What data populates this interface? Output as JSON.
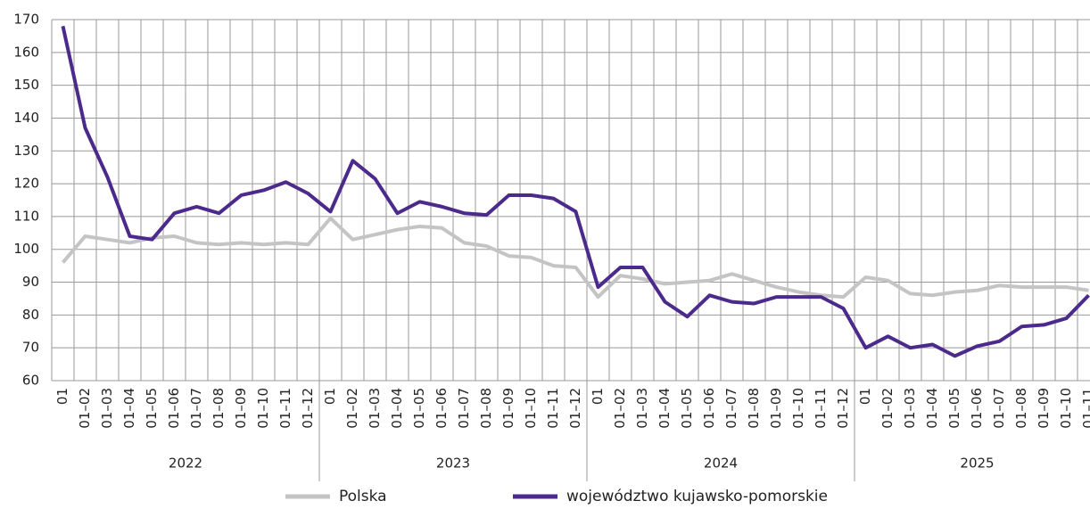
{
  "chart_data": {
    "type": "line",
    "groups": [
      {
        "name": "2022",
        "categories": [
          "01",
          "01–02",
          "01–03",
          "01–04",
          "01–05",
          "01–06",
          "01–07",
          "01–08",
          "01–09",
          "01–10",
          "01–11",
          "01–12"
        ]
      },
      {
        "name": "2023",
        "categories": [
          "01",
          "01–02",
          "01–03",
          "01–04",
          "01–05",
          "01–06",
          "01–07",
          "01–08",
          "01–09",
          "01–10",
          "01–11",
          "01–12"
        ]
      },
      {
        "name": "2024",
        "categories": [
          "01",
          "01–02",
          "01–03",
          "01–04",
          "01–05",
          "01–06",
          "01–07",
          "01–08",
          "01–09",
          "01–10",
          "01–11",
          "01–12"
        ]
      },
      {
        "name": "2025",
        "categories": [
          "01",
          "01–02",
          "01–03",
          "01–04",
          "01–05",
          "01–06",
          "01–07",
          "01–08",
          "01–09",
          "01–10",
          "01–11"
        ]
      }
    ],
    "series": [
      {
        "name": "Polska",
        "color": "#c4c4c4",
        "values": [
          96,
          104,
          103,
          102,
          103.5,
          104,
          102,
          101.5,
          102,
          101.5,
          102,
          101.5,
          109.5,
          103,
          104.5,
          106,
          107,
          106.5,
          102,
          101,
          98,
          97.5,
          95,
          94.5,
          85.5,
          92,
          91,
          89.5,
          90,
          90.5,
          92.5,
          90.5,
          88.5,
          87,
          86,
          85.5,
          91.5,
          90.5,
          86.5,
          86,
          87,
          87.5,
          89,
          88.5,
          88.5,
          88.5,
          87.5
        ]
      },
      {
        "name": "województwo kujawsko-pomorskie",
        "color": "#4b2a8c",
        "values": [
          168,
          137,
          122,
          104,
          103,
          111,
          113,
          111,
          116.5,
          118,
          120.5,
          117,
          111.5,
          127,
          121.5,
          111,
          114.5,
          113,
          111,
          110.5,
          116.5,
          116.5,
          115.5,
          111.5,
          88.5,
          94.5,
          94.5,
          84,
          79.5,
          86,
          84,
          83.5,
          85.5,
          85.5,
          85.5,
          82,
          70,
          73.5,
          70,
          71,
          67.5,
          70.5,
          72,
          76.5,
          77,
          79,
          86
        ]
      }
    ],
    "ylim": [
      60,
      170
    ],
    "yticks": [
      60,
      70,
      80,
      90,
      100,
      110,
      120,
      130,
      140,
      150,
      160,
      170
    ],
    "grid": true
  }
}
